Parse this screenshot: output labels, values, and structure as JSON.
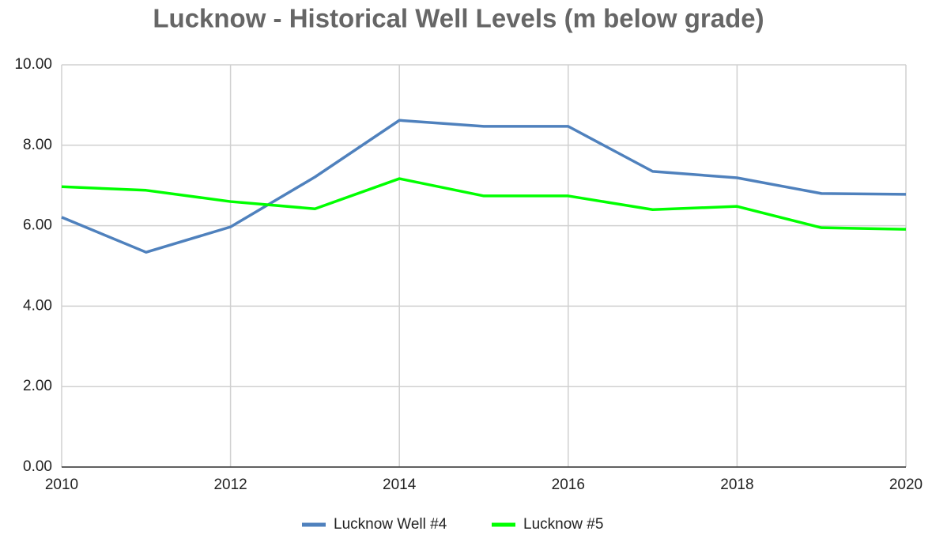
{
  "chart_data": {
    "type": "line",
    "title": "Lucknow - Historical Well Levels (m below grade)",
    "x": [
      2010,
      2011,
      2012,
      2013,
      2014,
      2015,
      2016,
      2017,
      2018,
      2019,
      2020
    ],
    "series": [
      {
        "name": "Lucknow Well #4",
        "color": "#4f81bd",
        "values": [
          6.21,
          5.34,
          5.97,
          7.21,
          8.62,
          8.47,
          8.47,
          7.35,
          7.19,
          6.8,
          6.78
        ]
      },
      {
        "name": "Lucknow #5",
        "color": "#00ff00",
        "values": [
          6.97,
          6.88,
          6.6,
          6.42,
          7.17,
          6.74,
          6.74,
          6.4,
          6.48,
          5.95,
          5.91
        ]
      }
    ],
    "xlim": [
      2010,
      2020
    ],
    "xticks": [
      2010,
      2012,
      2014,
      2016,
      2018,
      2020
    ],
    "ylim": [
      0,
      10
    ],
    "yticks": [
      {
        "value": 0,
        "label": "0.00"
      },
      {
        "value": 2,
        "label": "2.00"
      },
      {
        "value": 4,
        "label": "4.00"
      },
      {
        "value": 6,
        "label": "6.00"
      },
      {
        "value": 8,
        "label": "8.00"
      },
      {
        "value": 10,
        "label": "10.00"
      }
    ],
    "grid": true,
    "legend": "bottom"
  }
}
